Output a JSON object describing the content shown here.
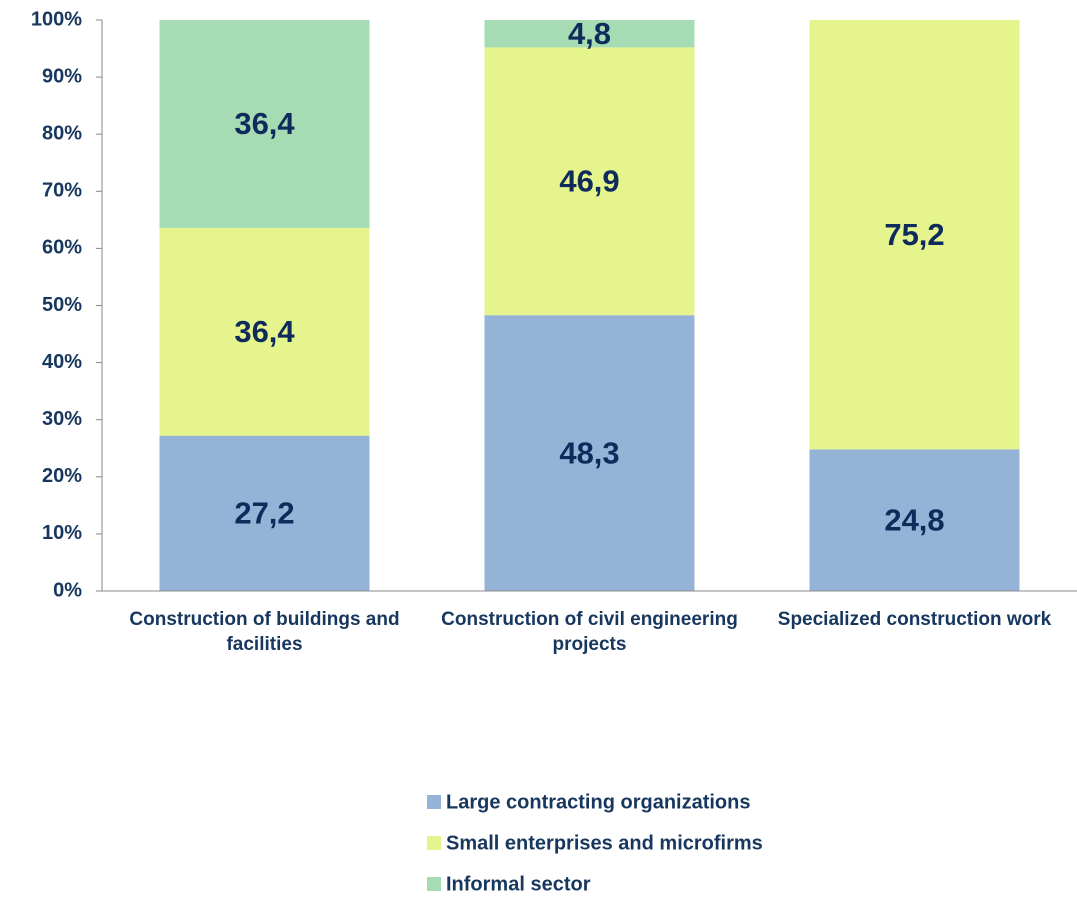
{
  "chart_data": {
    "type": "stacked-bar",
    "categories": [
      "Construction of buildings and facilities",
      "Construction of civil engineering projects",
      "Specialized construction work"
    ],
    "series": [
      {
        "name": "Large contracting organizations",
        "color": "#95b3d7",
        "values": [
          27.2,
          48.3,
          24.8
        ],
        "value_labels": [
          "27,2",
          "48,3",
          "24,8"
        ]
      },
      {
        "name": "Small enterprises and microfirms",
        "color": "#e5f48c",
        "values": [
          36.4,
          46.9,
          75.2
        ],
        "value_labels": [
          "36,4",
          "46,9",
          "75,2"
        ]
      },
      {
        "name": "Informal sector",
        "color": "#a6dcb3",
        "values": [
          36.4,
          4.8,
          null
        ],
        "value_labels": [
          "36,4",
          "4,8",
          null
        ]
      }
    ],
    "ylim": [
      0,
      100
    ],
    "yticks": [
      {
        "value": 0,
        "label": "0%"
      },
      {
        "value": 10,
        "label": "10%"
      },
      {
        "value": 20,
        "label": "20%"
      },
      {
        "value": 30,
        "label": "30%"
      },
      {
        "value": 40,
        "label": "40%"
      },
      {
        "value": 50,
        "label": "50%"
      },
      {
        "value": 60,
        "label": "60%"
      },
      {
        "value": 70,
        "label": "70%"
      },
      {
        "value": 80,
        "label": "80%"
      },
      {
        "value": 90,
        "label": "90%"
      },
      {
        "value": 100,
        "label": "100%"
      }
    ],
    "grid": false,
    "legend": "bottom"
  }
}
